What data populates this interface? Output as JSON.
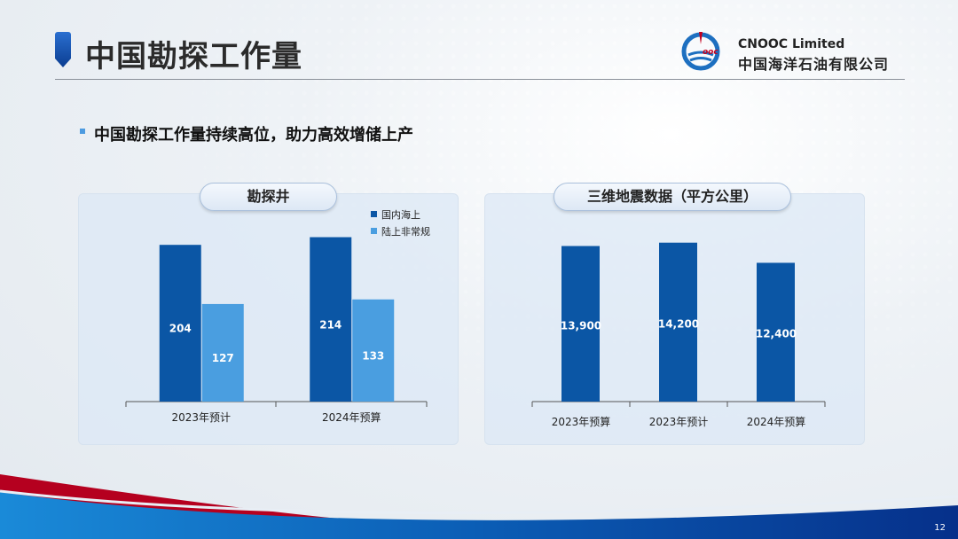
{
  "header": {
    "title": "中国勘探工作量",
    "logo_en": "CNOOC Limited",
    "logo_cn": "中国海洋石油有限公司",
    "logo_mark": "CNOOC"
  },
  "subtitle": "中国勘探工作量持续高位，助力高效增储上产",
  "page_number": "12",
  "colors": {
    "dark_blue": "#0b56a5",
    "light_blue": "#4a9ee0",
    "brand_red": "#b5001f"
  },
  "chart_data": [
    {
      "type": "bar",
      "title": "勘探井",
      "categories": [
        "2023年预计",
        "2024年预算"
      ],
      "series": [
        {
          "name": "国内海上",
          "values": [
            204,
            214
          ],
          "color": "#0b56a5"
        },
        {
          "name": "陆上非常规",
          "values": [
            127,
            133
          ],
          "color": "#4a9ee0"
        }
      ],
      "data_labels": [
        [
          "204",
          "214"
        ],
        [
          "127",
          "133"
        ]
      ],
      "legend_placement": "top-right",
      "grid": false,
      "ylim": [
        0,
        240
      ]
    },
    {
      "type": "bar",
      "title": "三维地震数据（平方公里）",
      "categories": [
        "2023年预算",
        "2023年预计",
        "2024年预算"
      ],
      "series": [
        {
          "values": [
            13900,
            14200,
            12400
          ],
          "color": "#0b56a5"
        }
      ],
      "data_labels": [
        "13,900",
        "14,200",
        "12,400"
      ],
      "grid": false,
      "ylim": [
        0,
        16000
      ]
    }
  ]
}
